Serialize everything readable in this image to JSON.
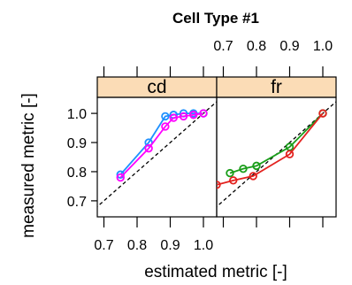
{
  "chart_data": {
    "type": "line",
    "title": "Cell Type #1",
    "xlabel": "estimated metric [-]",
    "ylabel": "measured metric [-]",
    "xlim": [
      0.68,
      1.04
    ],
    "ylim": [
      0.645,
      1.055
    ],
    "x_ticks": [
      0.7,
      0.8,
      0.9,
      1.0
    ],
    "x_tick_labels": [
      "0.7",
      "0.8",
      "0.9",
      "1.0"
    ],
    "y_ticks": [
      0.7,
      0.8,
      0.9,
      1.0
    ],
    "y_tick_labels": [
      "0.7",
      "0.8",
      "0.9",
      "1.0"
    ],
    "reference_line": "y = x (dashed)",
    "strip_color": "#fbdcb6",
    "panels": [
      {
        "label": "cd",
        "series": [
          {
            "color": "#1e90ff",
            "x": [
              0.75,
              0.835,
              0.885,
              0.91,
              0.94,
              0.97,
              1.0
            ],
            "y": [
              0.79,
              0.9,
              0.99,
              0.995,
              1.0,
              1.0,
              1.0
            ]
          },
          {
            "color": "#ff00ff",
            "x": [
              0.75,
              0.835,
              0.885,
              0.91,
              0.94,
              0.97,
              1.0
            ],
            "y": [
              0.78,
              0.88,
              0.955,
              0.985,
              0.99,
              0.995,
              1.0
            ]
          }
        ]
      },
      {
        "label": "fr",
        "series": [
          {
            "color": "#1b9e1b",
            "x": [
              0.72,
              0.76,
              0.8,
              0.9,
              1.0
            ],
            "y": [
              0.795,
              0.81,
              0.82,
              0.885,
              1.0
            ]
          },
          {
            "color": "#e3221f",
            "x": [
              0.68,
              0.73,
              0.79,
              0.9,
              1.0
            ],
            "y": [
              0.755,
              0.77,
              0.785,
              0.86,
              1.0
            ]
          }
        ]
      }
    ]
  }
}
